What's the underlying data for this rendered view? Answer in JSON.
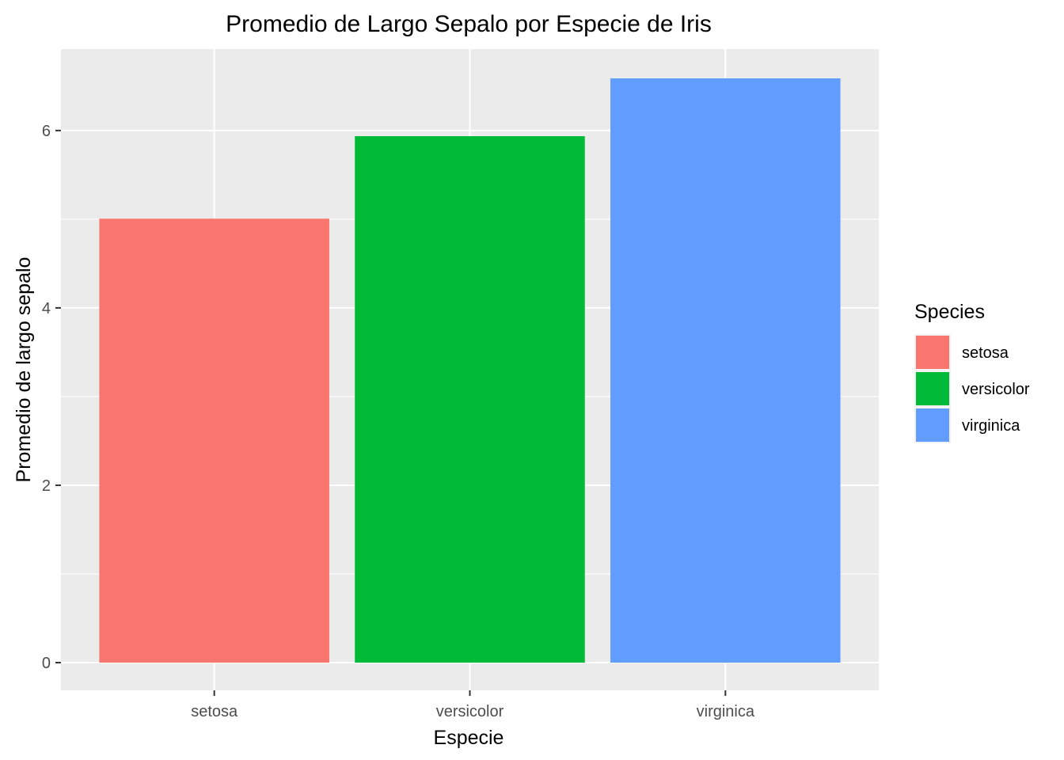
{
  "chart_data": {
    "type": "bar",
    "title": "Promedio de Largo Sepalo por Especie de Iris",
    "xlabel": "Especie",
    "ylabel": "Promedio de largo sepalo",
    "categories": [
      "setosa",
      "versicolor",
      "virginica"
    ],
    "values": [
      5.006,
      5.936,
      6.588
    ],
    "ylim": [
      0,
      6.917
    ],
    "yticks": [
      0,
      2,
      4,
      6
    ],
    "grid": true,
    "colors": [
      "#F8766D",
      "#00BA38",
      "#619CFF"
    ],
    "legend": {
      "title": "Species",
      "position": "right",
      "entries": [
        "setosa",
        "versicolor",
        "virginica"
      ]
    },
    "panel_background": "#EBEBEB",
    "grid_color": "#FFFFFF"
  }
}
